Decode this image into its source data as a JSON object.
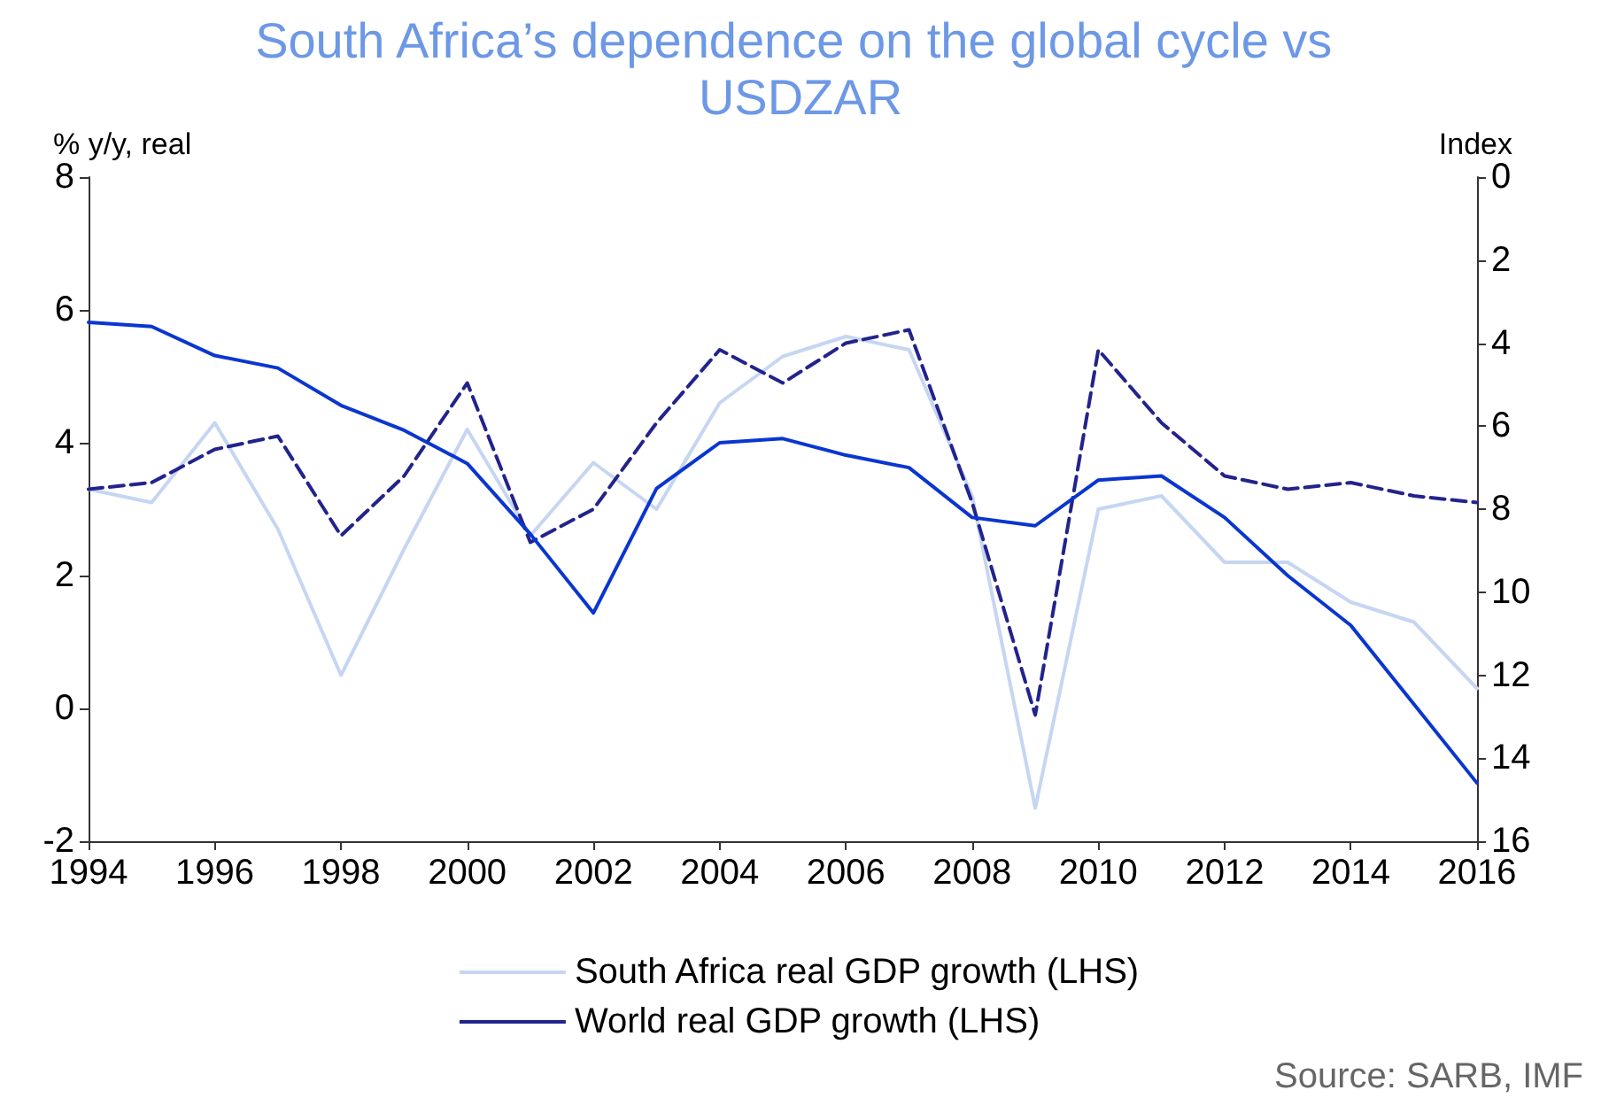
{
  "chart_data": {
    "type": "line",
    "title": "South Africa’s dependence on the global cycle vs USDZAR",
    "ylabel": "% y/y, real",
    "y2label": "Index",
    "annotations": [
      "Source: SARB, IMF"
    ],
    "x": [
      1994,
      1995,
      1996,
      1997,
      1998,
      1999,
      2000,
      2001,
      2002,
      2003,
      2004,
      2005,
      2006,
      2007,
      2008,
      2009,
      2010,
      2011,
      2012,
      2013,
      2014,
      2015,
      2016
    ],
    "xlim": [
      1994,
      2016
    ],
    "xticks": [
      1994,
      1996,
      1998,
      2000,
      2002,
      2004,
      2006,
      2008,
      2010,
      2012,
      2014,
      2016
    ],
    "ylim": [
      -2,
      8
    ],
    "yticks": [
      -2,
      0,
      2,
      4,
      6,
      8
    ],
    "y2lim": [
      16,
      0
    ],
    "y2ticks": [
      0,
      2,
      4,
      6,
      8,
      10,
      12,
      14,
      16
    ],
    "series": [
      {
        "name": "South Africa real GDP growth (LHS)",
        "color": "#c6d6f2",
        "line_style": "solid",
        "values": [
          3.3,
          3.1,
          4.3,
          2.7,
          0.5,
          2.4,
          4.2,
          2.6,
          3.7,
          3.0,
          4.6,
          5.3,
          5.6,
          5.4,
          3.2,
          -1.5,
          3.0,
          3.2,
          2.2,
          2.2,
          1.6,
          1.3,
          0.3
        ]
      },
      {
        "name": "World real GDP growth (LHS)",
        "color": "#23238c",
        "line_style": "dashed",
        "values": [
          3.3,
          3.4,
          3.9,
          4.1,
          2.6,
          3.5,
          4.9,
          2.5,
          3.0,
          4.3,
          5.4,
          4.9,
          5.5,
          5.7,
          3.1,
          -0.1,
          5.4,
          4.3,
          3.5,
          3.3,
          3.4,
          3.2,
          3.1
        ]
      },
      {
        "color": "#0a36d0",
        "line_style": "solid",
        "axis": "y2",
        "values": [
          3.5,
          3.6,
          4.3,
          4.6,
          5.5,
          6.1,
          6.9,
          8.6,
          10.5,
          7.5,
          6.4,
          6.3,
          6.7,
          7.0,
          8.2,
          8.4,
          7.3,
          7.2,
          8.2,
          9.6,
          10.8,
          12.7,
          14.6
        ]
      }
    ],
    "legend": "bottom",
    "marker": "none"
  }
}
